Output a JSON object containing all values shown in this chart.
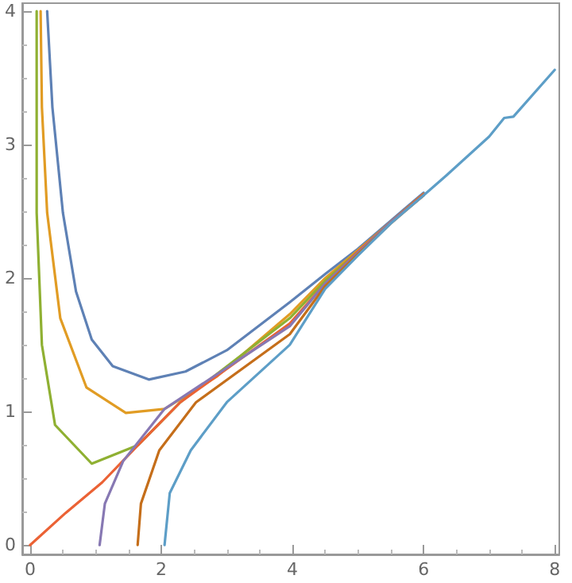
{
  "chart_data": {
    "type": "line",
    "marker": "none",
    "grid": false,
    "xlim": [
      -0.12,
      8.07
    ],
    "ylim": [
      -0.07,
      4.06
    ],
    "xticks": [
      0,
      2,
      4,
      6,
      8
    ],
    "yticks": [
      0,
      1,
      2,
      3,
      4
    ],
    "series": [
      {
        "color": "#5e81b5",
        "x": [
          0.26,
          0.34,
          0.5,
          0.7,
          0.94,
          1.26,
          1.81,
          2.37,
          3.0,
          3.96,
          4.5,
          5,
          5.5,
          6
        ],
        "values": [
          4.0,
          3.28,
          2.49,
          1.9,
          1.54,
          1.34,
          1.24,
          1.3,
          1.46,
          1.82,
          2.03,
          2.22,
          2.43,
          2.64
        ]
      },
      {
        "color": "#e19c24",
        "x": [
          0.16,
          0.18,
          0.26,
          0.46,
          0.86,
          1.46,
          2.05,
          2.84,
          3.96,
          4.5,
          5,
          5.5,
          6
        ],
        "values": [
          4.0,
          3.28,
          2.49,
          1.7,
          1.18,
          0.99,
          1.02,
          1.26,
          1.73,
          2.0,
          2.21,
          2.42,
          2.63
        ]
      },
      {
        "color": "#8fb032",
        "x": [
          0.1,
          0.1,
          0.18,
          0.38,
          0.94,
          1.65,
          2.29,
          3.96,
          4.5,
          5,
          5.5,
          6
        ],
        "values": [
          4.0,
          2.49,
          1.5,
          0.9,
          0.61,
          0.75,
          1.07,
          1.7,
          1.98,
          2.2,
          2.42,
          2.63
        ]
      },
      {
        "color": "#eb6235",
        "x": [
          0,
          0.54,
          1.1,
          1.65,
          2.29,
          3.96,
          4.5,
          5,
          5.5,
          6
        ],
        "values": [
          0,
          0.24,
          0.47,
          0.75,
          1.07,
          1.66,
          1.96,
          2.2,
          2.42,
          2.63
        ]
      },
      {
        "color": "#8778b3",
        "x": [
          1.06,
          1.14,
          1.42,
          2.05,
          3.96,
          4.5,
          5,
          5.5,
          6
        ],
        "values": [
          0,
          0.31,
          0.63,
          1.02,
          1.64,
          1.96,
          2.19,
          2.42,
          2.62
        ]
      },
      {
        "color": "#c56e1a",
        "x": [
          1.64,
          1.69,
          1.97,
          2.53,
          3.96,
          4.5,
          5,
          5.5,
          6
        ],
        "values": [
          0,
          0.31,
          0.71,
          1.07,
          1.58,
          1.94,
          2.18,
          2.41,
          2.62
        ]
      },
      {
        "color": "#5d9ec7",
        "x": [
          2.05,
          2.13,
          2.45,
          3.0,
          3.96,
          4.5,
          5,
          5.5,
          6,
          6.35,
          7,
          7.23,
          7.37,
          8
        ],
        "values": [
          0,
          0.39,
          0.71,
          1.07,
          1.5,
          1.92,
          2.17,
          2.41,
          2.62,
          2.77,
          3.06,
          3.2,
          3.21,
          3.56
        ]
      }
    ]
  }
}
